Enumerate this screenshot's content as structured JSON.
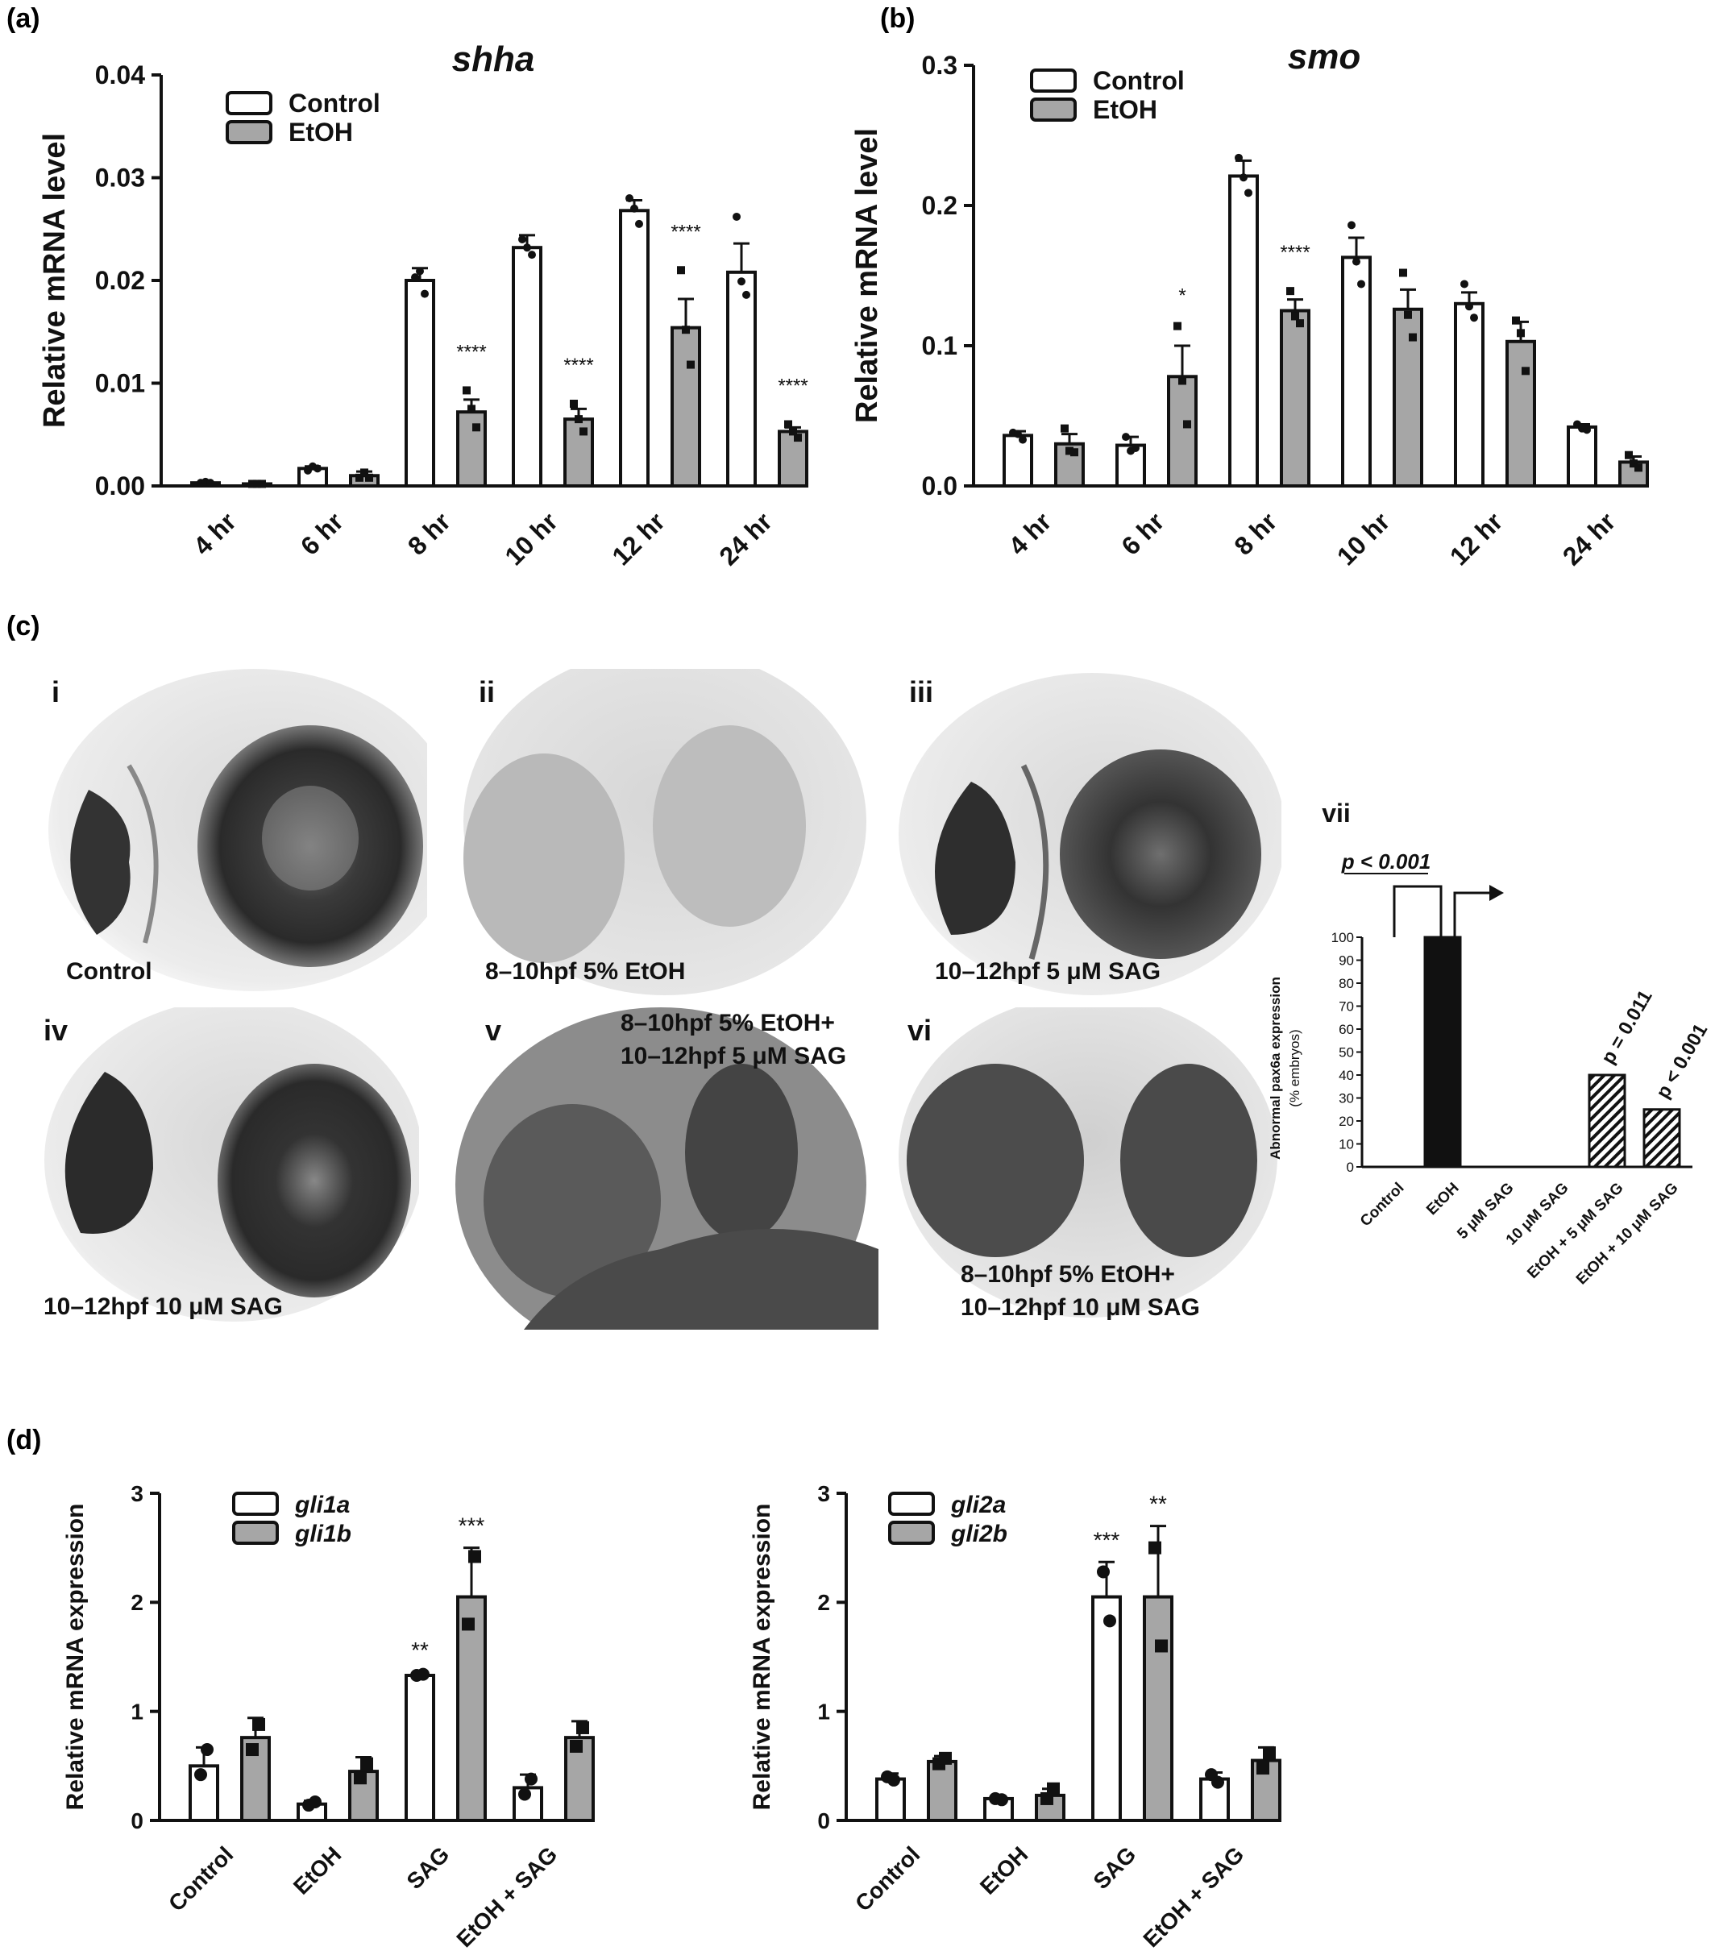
{
  "panels": {
    "a": "(a)",
    "b": "(b)",
    "c": "(c)",
    "d": "(d)"
  },
  "chart_data": [
    {
      "id": "a",
      "type": "bar",
      "title": "shha",
      "ylabel": "Relative mRNA level",
      "xlabel": "",
      "categories": [
        "4 hr",
        "6 hr",
        "8 hr",
        "10 hr",
        "12 hr",
        "24 hr"
      ],
      "ylim": [
        0,
        0.04
      ],
      "yticks": [
        "0.00",
        "0.01",
        "0.02",
        "0.03",
        "0.04"
      ],
      "legend_position": "top-left",
      "series": [
        {
          "name": "Control",
          "values": [
            0.0003,
            0.0017,
            0.02,
            0.0232,
            0.0268,
            0.0208
          ],
          "errors": [
            0.0001,
            0.0002,
            0.0012,
            0.0012,
            0.001,
            0.0028
          ],
          "points": [
            [
              0.0003,
              0.0004,
              0.0003
            ],
            [
              0.0015,
              0.0019,
              0.0017
            ],
            [
              0.0203,
              0.0209,
              0.0187
            ],
            [
              0.024,
              0.0232,
              0.0225
            ],
            [
              0.028,
              0.027,
              0.0255
            ],
            [
              0.0262,
              0.0199,
              0.0186
            ]
          ]
        },
        {
          "name": "EtOH",
          "values": [
            0.0002,
            0.001,
            0.0072,
            0.0065,
            0.0154,
            0.0053
          ],
          "errors": [
            0.0001,
            0.0004,
            0.0012,
            0.001,
            0.0028,
            0.0004
          ],
          "points": [
            [
              0.0002,
              0.0002,
              0.0002
            ],
            [
              0.0008,
              0.0013,
              0.0008
            ],
            [
              0.0093,
              0.0075,
              0.0057
            ],
            [
              0.008,
              0.0065,
              0.0053
            ],
            [
              0.021,
              0.0152,
              0.0118
            ],
            [
              0.006,
              0.0053,
              0.0047
            ]
          ]
        }
      ],
      "annotations": [
        {
          "category": "8 hr",
          "text": "****"
        },
        {
          "category": "10 hr",
          "text": "****"
        },
        {
          "category": "12 hr",
          "text": "****"
        },
        {
          "category": "24 hr",
          "text": "****"
        }
      ]
    },
    {
      "id": "b",
      "type": "bar",
      "title": "smo",
      "ylabel": "Relative mRNA level",
      "xlabel": "",
      "categories": [
        "4 hr",
        "6 hr",
        "8 hr",
        "10 hr",
        "12 hr",
        "24 hr"
      ],
      "ylim": [
        0,
        0.3
      ],
      "yticks": [
        "0.0",
        "0.1",
        "0.2",
        "0.3"
      ],
      "legend_position": "top-left",
      "series": [
        {
          "name": "Control",
          "values": [
            0.036,
            0.029,
            0.221,
            0.163,
            0.13,
            0.042
          ],
          "errors": [
            0.003,
            0.006,
            0.011,
            0.014,
            0.008,
            0.002
          ],
          "points": [
            [
              0.038,
              0.037,
              0.033
            ],
            [
              0.035,
              0.025,
              0.027
            ],
            [
              0.234,
              0.22,
              0.209
            ],
            [
              0.186,
              0.16,
              0.144
            ],
            [
              0.144,
              0.128,
              0.12
            ],
            [
              0.044,
              0.041,
              0.04
            ]
          ]
        },
        {
          "name": "EtOH",
          "values": [
            0.03,
            0.078,
            0.125,
            0.126,
            0.103,
            0.017
          ],
          "errors": [
            0.007,
            0.022,
            0.008,
            0.014,
            0.014,
            0.004
          ],
          "points": [
            [
              0.041,
              0.025,
              0.024
            ],
            [
              0.114,
              0.075,
              0.044
            ],
            [
              0.139,
              0.121,
              0.116
            ],
            [
              0.152,
              0.122,
              0.106
            ],
            [
              0.118,
              0.109,
              0.082
            ],
            [
              0.022,
              0.016,
              0.013
            ]
          ]
        }
      ],
      "annotations": [
        {
          "category": "6 hr",
          "text": "*"
        },
        {
          "category": "8 hr",
          "text": "****"
        }
      ]
    },
    {
      "id": "vii",
      "type": "bar",
      "title": "vii",
      "ylabel": "Abnormal pax6a expression",
      "ylabel2": "(% embryos)",
      "categories": [
        "Control",
        "EtOH",
        "5 μM SAG",
        "10 μM SAG",
        "EtOH + 5 μM SAG",
        "EtOH + 10 μM SAG"
      ],
      "values": [
        0,
        100,
        0,
        0,
        40,
        25
      ],
      "ylim": [
        0,
        100
      ],
      "yticks": [
        "0",
        "10",
        "20",
        "30",
        "40",
        "50",
        "60",
        "70",
        "80",
        "90",
        "100"
      ],
      "fills": [
        "white",
        "black",
        "white",
        "white",
        "hatch",
        "hatch"
      ],
      "annotations": [
        {
          "text": "p < 0.001",
          "kind": "bracket"
        },
        {
          "text": "p = 0.011",
          "category": "EtOH + 5 μM SAG"
        },
        {
          "text": "p < 0.001",
          "category": "EtOH + 10 μM SAG"
        }
      ]
    },
    {
      "id": "d1",
      "type": "bar",
      "title": "",
      "ylabel": "Relative mRNA expression",
      "categories": [
        "Control",
        "EtOH",
        "SAG",
        "EtOH + SAG"
      ],
      "ylim": [
        0,
        3
      ],
      "yticks": [
        "0",
        "1",
        "2",
        "3"
      ],
      "legend_position": "top-left",
      "series": [
        {
          "name": "gli1a",
          "values": [
            0.5,
            0.15,
            1.33,
            0.3
          ],
          "errors": [
            0.17,
            0.03,
            0.03,
            0.12
          ],
          "points": [
            [
              0.42,
              0.65
            ],
            [
              0.14,
              0.17
            ],
            [
              1.33,
              1.34
            ],
            [
              0.24,
              0.38
            ]
          ],
          "marker": "circle"
        },
        {
          "name": "gli1b",
          "values": [
            0.76,
            0.45,
            2.05,
            0.76
          ],
          "errors": [
            0.18,
            0.13,
            0.45,
            0.15
          ],
          "points": [
            [
              0.65,
              0.88
            ],
            [
              0.39,
              0.52
            ],
            [
              1.8,
              2.42
            ],
            [
              0.68,
              0.85
            ]
          ],
          "marker": "square"
        }
      ],
      "annotations": [
        {
          "category": "SAG",
          "series": "gli1a",
          "text": "**"
        },
        {
          "category": "SAG",
          "series": "gli1b",
          "text": "***"
        }
      ]
    },
    {
      "id": "d2",
      "type": "bar",
      "title": "",
      "ylabel": "Relative mRNA expression",
      "categories": [
        "Control",
        "EtOH",
        "SAG",
        "EtOH + SAG"
      ],
      "ylim": [
        0,
        3
      ],
      "yticks": [
        "0",
        "1",
        "2",
        "3"
      ],
      "legend_position": "top-left",
      "series": [
        {
          "name": "gli2a",
          "values": [
            0.38,
            0.2,
            2.05,
            0.38
          ],
          "errors": [
            0.05,
            0.02,
            0.32,
            0.06
          ],
          "points": [
            [
              0.4,
              0.37
            ],
            [
              0.2,
              0.19
            ],
            [
              2.28,
              1.83
            ],
            [
              0.42,
              0.35
            ]
          ],
          "marker": "circle"
        },
        {
          "name": "gli2b",
          "values": [
            0.54,
            0.23,
            2.05,
            0.55
          ],
          "errors": [
            0.05,
            0.06,
            0.65,
            0.12
          ],
          "points": [
            [
              0.52,
              0.57
            ],
            [
              0.2,
              0.29
            ],
            [
              2.5,
              1.6
            ],
            [
              0.48,
              0.62
            ]
          ],
          "marker": "square"
        }
      ],
      "annotations": [
        {
          "category": "SAG",
          "series": "gli2a",
          "text": "***"
        },
        {
          "category": "SAG",
          "series": "gli2b",
          "text": "**"
        }
      ]
    }
  ],
  "photos": [
    {
      "roman": "i",
      "caption": [
        "Control"
      ]
    },
    {
      "roman": "ii",
      "caption": [
        "8–10hpf 5% EtOH"
      ]
    },
    {
      "roman": "iii",
      "caption": [
        "10–12hpf 5 μM SAG"
      ]
    },
    {
      "roman": "iv",
      "caption": [
        "10–12hpf 10 μM SAG"
      ]
    },
    {
      "roman": "v",
      "caption": [
        "8–10hpf 5% EtOH+",
        "10–12hpf 5 μM SAG"
      ]
    },
    {
      "roman": "vi",
      "caption": [
        "8–10hpf 5% EtOH+",
        "10–12hpf 10 μM SAG"
      ]
    }
  ],
  "colors": {
    "control_fill": "#ffffff",
    "treated_fill": "#a6a6a6",
    "black_fill": "#111111",
    "stroke": "#111111"
  }
}
